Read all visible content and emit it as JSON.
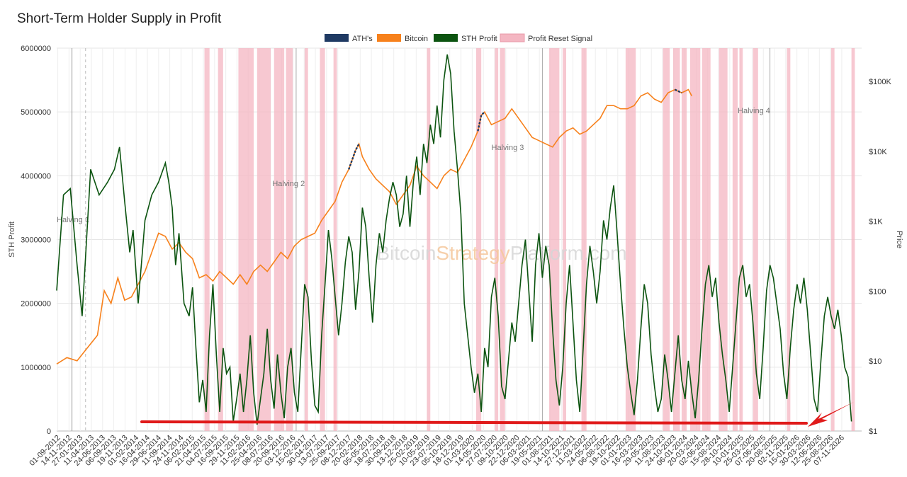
{
  "chart_data": {
    "type": "line",
    "title": "Short-Term Holder Supply in Profit",
    "ylabel_left": "STH Profit",
    "ylabel_right": "Price",
    "left_axis": {
      "ticks": [
        "0",
        "1000000",
        "2000000",
        "3000000",
        "4000000",
        "5000000",
        "6000000"
      ],
      "ylim": [
        0,
        6000000
      ]
    },
    "right_axis": {
      "scale": "log",
      "ticks": [
        "$1",
        "$10",
        "$100",
        "$1K",
        "$10K",
        "$100K"
      ],
      "ylim": [
        1,
        300000
      ]
    },
    "legend": {
      "placement": "top-center",
      "items": [
        {
          "name": "ATH's",
          "color": "#1f3a63"
        },
        {
          "name": "Bitcoin",
          "color": "#f7811c"
        },
        {
          "name": "STH Profit",
          "color": "#0c5410"
        },
        {
          "name": "Profit Reset Signal",
          "color": "#f4b6c2"
        }
      ]
    },
    "x_ticks": [
      "01-09-2012",
      "14-11-2012",
      "27-01-2013",
      "11-04-2013",
      "24-06-2013",
      "06-09-2013",
      "19-11-2013",
      "01-02-2014",
      "16-04-2014",
      "29-06-2014",
      "11-09-2014",
      "24-11-2014",
      "06-02-2015",
      "21-04-2015",
      "04-07-2015",
      "16-09-2015",
      "29-11-2015",
      "11-02-2016",
      "25-04-2016",
      "08-07-2016",
      "20-09-2016",
      "03-12-2016",
      "15-02-2017",
      "30-04-2017",
      "13-07-2017",
      "25-09-2017",
      "08-12-2017",
      "20-02-2018",
      "05-05-2018",
      "18-07-2018",
      "30-09-2018",
      "13-12-2018",
      "25-02-2019",
      "10-05-2019",
      "23-07-2019",
      "05-10-2019",
      "18-12-2019",
      "01-03-2020",
      "14-05-2020",
      "27-07-2020",
      "09-10-2020",
      "22-12-2020",
      "06-03-2021",
      "19-05-2021",
      "01-08-2021",
      "14-10-2021",
      "27-12-2021",
      "11-03-2022",
      "24-05-2022",
      "06-08-2022",
      "19-10-2022",
      "01-01-2023",
      "16-03-2023",
      "29-05-2023",
      "11-08-2023",
      "24-10-2023",
      "06-01-2024",
      "20-03-2024",
      "02-06-2024",
      "15-08-2024",
      "28-10-2024",
      "10-01-2025",
      "25-03-2025",
      "07-06-2025",
      "20-08-2025",
      "02-11-2025",
      "15-01-2026",
      "30-03-2026",
      "12-06-2026",
      "25-08-2026",
      "07-11-2026"
    ],
    "annotations": [
      "Halving 1",
      "Halving 2",
      "Halving 3",
      "Halving 4"
    ],
    "watermark": [
      "Bitcoin",
      "Strategy",
      "Platform.com"
    ],
    "sth_profit": [
      [
        0,
        2200000
      ],
      [
        4,
        3700000
      ],
      [
        8,
        3800000
      ],
      [
        12,
        2600000
      ],
      [
        15,
        1800000
      ],
      [
        20,
        4100000
      ],
      [
        25,
        3700000
      ],
      [
        30,
        3900000
      ],
      [
        34,
        4100000
      ],
      [
        37,
        4450000
      ],
      [
        40,
        3600000
      ],
      [
        43,
        2800000
      ],
      [
        45,
        3150000
      ],
      [
        48,
        2000000
      ],
      [
        52,
        3300000
      ],
      [
        56,
        3700000
      ],
      [
        60,
        3900000
      ],
      [
        64,
        4200000
      ],
      [
        66,
        3900000
      ],
      [
        68,
        3500000
      ],
      [
        70,
        2600000
      ],
      [
        72,
        3100000
      ],
      [
        75,
        2000000
      ],
      [
        78,
        1800000
      ],
      [
        80,
        2250000
      ],
      [
        82,
        1300000
      ],
      [
        84,
        450000
      ],
      [
        86,
        800000
      ],
      [
        88,
        300000
      ],
      [
        90,
        1500000
      ],
      [
        92,
        2300000
      ],
      [
        94,
        1200000
      ],
      [
        96,
        300000
      ],
      [
        98,
        1300000
      ],
      [
        100,
        900000
      ],
      [
        102,
        1000000
      ],
      [
        104,
        150000
      ],
      [
        106,
        500000
      ],
      [
        108,
        900000
      ],
      [
        110,
        300000
      ],
      [
        112,
        800000
      ],
      [
        114,
        1500000
      ],
      [
        116,
        600000
      ],
      [
        118,
        100000
      ],
      [
        120,
        500000
      ],
      [
        122,
        900000
      ],
      [
        124,
        1600000
      ],
      [
        126,
        800000
      ],
      [
        128,
        350000
      ],
      [
        130,
        1200000
      ],
      [
        132,
        600000
      ],
      [
        134,
        200000
      ],
      [
        136,
        1000000
      ],
      [
        138,
        1300000
      ],
      [
        140,
        600000
      ],
      [
        142,
        300000
      ],
      [
        144,
        1300000
      ],
      [
        146,
        2300000
      ],
      [
        148,
        2100000
      ],
      [
        150,
        1100000
      ],
      [
        152,
        400000
      ],
      [
        154,
        300000
      ],
      [
        156,
        1500000
      ],
      [
        158,
        2300000
      ],
      [
        160,
        3150000
      ],
      [
        162,
        2700000
      ],
      [
        164,
        2100000
      ],
      [
        166,
        1500000
      ],
      [
        168,
        2000000
      ],
      [
        170,
        2650000
      ],
      [
        172,
        3050000
      ],
      [
        174,
        2800000
      ],
      [
        176,
        1900000
      ],
      [
        178,
        2500000
      ],
      [
        180,
        3500000
      ],
      [
        182,
        3200000
      ],
      [
        184,
        2400000
      ],
      [
        186,
        1700000
      ],
      [
        188,
        2600000
      ],
      [
        190,
        3100000
      ],
      [
        192,
        2800000
      ],
      [
        194,
        3300000
      ],
      [
        196,
        3650000
      ],
      [
        198,
        3900000
      ],
      [
        200,
        3700000
      ],
      [
        202,
        3200000
      ],
      [
        204,
        3400000
      ],
      [
        206,
        4000000
      ],
      [
        208,
        3200000
      ],
      [
        210,
        3900000
      ],
      [
        212,
        4300000
      ],
      [
        214,
        3700000
      ],
      [
        216,
        4500000
      ],
      [
        218,
        4200000
      ],
      [
        220,
        4800000
      ],
      [
        222,
        4500000
      ],
      [
        224,
        5100000
      ],
      [
        226,
        4600000
      ],
      [
        228,
        5500000
      ],
      [
        230,
        5900000
      ],
      [
        232,
        5600000
      ],
      [
        234,
        4700000
      ],
      [
        236,
        4100000
      ],
      [
        238,
        3400000
      ],
      [
        240,
        2000000
      ],
      [
        242,
        1500000
      ],
      [
        244,
        1000000
      ],
      [
        246,
        600000
      ],
      [
        248,
        900000
      ],
      [
        250,
        300000
      ],
      [
        252,
        1300000
      ],
      [
        254,
        1000000
      ],
      [
        256,
        2100000
      ],
      [
        258,
        2400000
      ],
      [
        260,
        1800000
      ],
      [
        262,
        700000
      ],
      [
        264,
        500000
      ],
      [
        266,
        1100000
      ],
      [
        268,
        1700000
      ],
      [
        270,
        1400000
      ],
      [
        272,
        2000000
      ],
      [
        274,
        2600000
      ],
      [
        276,
        3000000
      ],
      [
        278,
        2200000
      ],
      [
        280,
        1400000
      ],
      [
        282,
        2600000
      ],
      [
        284,
        3100000
      ],
      [
        286,
        2400000
      ],
      [
        288,
        2900000
      ],
      [
        290,
        2600000
      ],
      [
        292,
        1600000
      ],
      [
        294,
        800000
      ],
      [
        296,
        400000
      ],
      [
        298,
        1000000
      ],
      [
        300,
        2000000
      ],
      [
        302,
        2600000
      ],
      [
        304,
        1700000
      ],
      [
        306,
        800000
      ],
      [
        308,
        300000
      ],
      [
        310,
        1300000
      ],
      [
        312,
        2300000
      ],
      [
        314,
        2900000
      ],
      [
        316,
        2500000
      ],
      [
        318,
        2000000
      ],
      [
        320,
        2500000
      ],
      [
        322,
        3300000
      ],
      [
        324,
        3000000
      ],
      [
        326,
        3500000
      ],
      [
        328,
        3850000
      ],
      [
        330,
        3100000
      ],
      [
        332,
        2300000
      ],
      [
        334,
        1600000
      ],
      [
        336,
        1000000
      ],
      [
        338,
        600000
      ],
      [
        340,
        250000
      ],
      [
        342,
        800000
      ],
      [
        344,
        1600000
      ],
      [
        346,
        2300000
      ],
      [
        348,
        2000000
      ],
      [
        350,
        1200000
      ],
      [
        352,
        700000
      ],
      [
        354,
        300000
      ],
      [
        356,
        500000
      ],
      [
        358,
        1200000
      ],
      [
        360,
        800000
      ],
      [
        362,
        300000
      ],
      [
        364,
        900000
      ],
      [
        366,
        1500000
      ],
      [
        368,
        800000
      ],
      [
        370,
        500000
      ],
      [
        372,
        1100000
      ],
      [
        374,
        600000
      ],
      [
        376,
        200000
      ],
      [
        378,
        800000
      ],
      [
        380,
        1600000
      ],
      [
        382,
        2300000
      ],
      [
        384,
        2600000
      ],
      [
        386,
        2100000
      ],
      [
        388,
        2400000
      ],
      [
        390,
        1700000
      ],
      [
        392,
        1200000
      ],
      [
        394,
        800000
      ],
      [
        396,
        300000
      ],
      [
        398,
        1000000
      ],
      [
        400,
        1700000
      ],
      [
        402,
        2400000
      ],
      [
        404,
        2600000
      ],
      [
        406,
        2100000
      ],
      [
        408,
        2300000
      ],
      [
        410,
        1700000
      ],
      [
        412,
        900000
      ],
      [
        414,
        500000
      ],
      [
        416,
        1300000
      ],
      [
        418,
        2200000
      ],
      [
        420,
        2600000
      ],
      [
        422,
        2400000
      ],
      [
        424,
        2000000
      ],
      [
        426,
        1600000
      ],
      [
        428,
        900000
      ],
      [
        430,
        500000
      ],
      [
        432,
        1300000
      ],
      [
        434,
        1900000
      ],
      [
        436,
        2300000
      ],
      [
        438,
        2000000
      ],
      [
        440,
        2400000
      ],
      [
        442,
        1900000
      ],
      [
        444,
        1200000
      ],
      [
        446,
        500000
      ],
      [
        448,
        300000
      ],
      [
        450,
        1100000
      ],
      [
        452,
        1800000
      ],
      [
        454,
        2100000
      ],
      [
        456,
        1800000
      ],
      [
        458,
        1600000
      ],
      [
        460,
        1900000
      ],
      [
        462,
        1500000
      ],
      [
        464,
        1000000
      ],
      [
        466,
        850000
      ],
      [
        468,
        150000
      ]
    ],
    "bitcoin": [
      [
        0,
        1050000
      ],
      [
        6,
        1150000
      ],
      [
        12,
        1100000
      ],
      [
        18,
        1300000
      ],
      [
        24,
        1500000
      ],
      [
        28,
        2200000
      ],
      [
        32,
        2000000
      ],
      [
        36,
        2400000
      ],
      [
        40,
        2050000
      ],
      [
        44,
        2100000
      ],
      [
        48,
        2300000
      ],
      [
        52,
        2500000
      ],
      [
        56,
        2800000
      ],
      [
        60,
        3100000
      ],
      [
        64,
        3050000
      ],
      [
        68,
        2850000
      ],
      [
        72,
        2950000
      ],
      [
        76,
        2800000
      ],
      [
        80,
        2700000
      ],
      [
        84,
        2400000
      ],
      [
        88,
        2450000
      ],
      [
        92,
        2350000
      ],
      [
        96,
        2500000
      ],
      [
        100,
        2400000
      ],
      [
        104,
        2300000
      ],
      [
        108,
        2450000
      ],
      [
        112,
        2300000
      ],
      [
        116,
        2500000
      ],
      [
        120,
        2600000
      ],
      [
        124,
        2500000
      ],
      [
        128,
        2650000
      ],
      [
        132,
        2800000
      ],
      [
        136,
        2700000
      ],
      [
        140,
        2900000
      ],
      [
        144,
        3000000
      ],
      [
        148,
        3050000
      ],
      [
        152,
        3100000
      ],
      [
        156,
        3300000
      ],
      [
        160,
        3450000
      ],
      [
        164,
        3600000
      ],
      [
        168,
        3900000
      ],
      [
        172,
        4100000
      ],
      [
        176,
        4400000
      ],
      [
        178,
        4500000
      ],
      [
        180,
        4300000
      ],
      [
        184,
        4100000
      ],
      [
        188,
        3950000
      ],
      [
        192,
        3850000
      ],
      [
        196,
        3750000
      ],
      [
        200,
        3550000
      ],
      [
        204,
        3700000
      ],
      [
        208,
        3850000
      ],
      [
        212,
        4150000
      ],
      [
        216,
        4000000
      ],
      [
        220,
        3900000
      ],
      [
        224,
        3800000
      ],
      [
        228,
        4000000
      ],
      [
        232,
        4100000
      ],
      [
        236,
        4050000
      ],
      [
        240,
        4250000
      ],
      [
        244,
        4450000
      ],
      [
        248,
        4700000
      ],
      [
        250,
        4950000
      ],
      [
        252,
        5000000
      ],
      [
        256,
        4800000
      ],
      [
        260,
        4850000
      ],
      [
        264,
        4900000
      ],
      [
        268,
        5050000
      ],
      [
        272,
        4900000
      ],
      [
        276,
        4750000
      ],
      [
        280,
        4600000
      ],
      [
        284,
        4550000
      ],
      [
        288,
        4500000
      ],
      [
        292,
        4450000
      ],
      [
        296,
        4600000
      ],
      [
        300,
        4700000
      ],
      [
        304,
        4750000
      ],
      [
        308,
        4650000
      ],
      [
        312,
        4700000
      ],
      [
        316,
        4800000
      ],
      [
        320,
        4900000
      ],
      [
        324,
        5100000
      ],
      [
        328,
        5100000
      ],
      [
        332,
        5050000
      ],
      [
        336,
        5050000
      ],
      [
        340,
        5100000
      ],
      [
        344,
        5250000
      ],
      [
        348,
        5300000
      ],
      [
        352,
        5200000
      ],
      [
        356,
        5150000
      ],
      [
        360,
        5300000
      ],
      [
        364,
        5350000
      ],
      [
        368,
        5300000
      ],
      [
        372,
        5350000
      ],
      [
        374,
        5250000
      ]
    ]
  }
}
